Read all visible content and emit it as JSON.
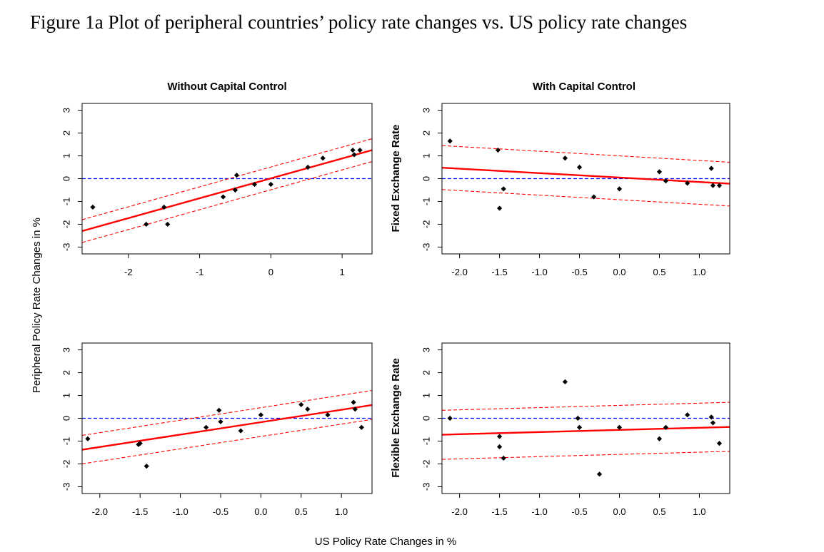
{
  "figure": {
    "caption": "Figure 1a Plot of peripheral countries’ policy rate changes vs. US policy rate changes",
    "column_titles": [
      "Without Capital Control",
      "With Capital Control"
    ],
    "row_labels": [
      "Fixed Exchange Rate",
      "Flexible Exchange Rate"
    ],
    "y_axis_label": "Peripheral Policy Rate Changes in %",
    "x_axis_label": "US Policy Rate Changes in %"
  },
  "colors": {
    "points": "#000000",
    "fit_line": "#ff0000",
    "confidence_band": "#ff0000",
    "zero_line": "#0000ff",
    "frame": "#000000"
  },
  "chart_data": [
    {
      "type": "scatter",
      "title": "Without Capital Control",
      "xlabel": "",
      "ylabel": "",
      "xlim": [
        -2.65,
        1.42
      ],
      "ylim": [
        -3.3,
        3.3
      ],
      "x_ticks": [
        -2,
        -1,
        0,
        1
      ],
      "y_ticks": [
        -3,
        -2,
        -1,
        0,
        1,
        2,
        3
      ],
      "x": [
        -2.5,
        -1.75,
        -1.5,
        -1.45,
        -0.67,
        -0.5,
        -0.48,
        -0.23,
        0.0,
        0.52,
        0.73,
        1.15,
        1.17,
        1.25
      ],
      "y": [
        -1.25,
        -2.0,
        -1.25,
        -2.0,
        -0.8,
        -0.5,
        0.15,
        -0.25,
        -0.25,
        0.5,
        0.9,
        1.25,
        1.05,
        1.25
      ],
      "fit_line": {
        "x": [
          -2.65,
          1.42
        ],
        "y": [
          -2.3,
          1.25
        ]
      },
      "confidence_band": {
        "upper": {
          "x": [
            -2.65,
            1.42
          ],
          "y": [
            -1.8,
            1.75
          ]
        },
        "lower": {
          "x": [
            -2.65,
            1.42
          ],
          "y": [
            -2.8,
            0.75
          ]
        }
      },
      "reference_line_y": 0,
      "grid": false
    },
    {
      "type": "scatter",
      "title": "With Capital Control",
      "xlabel": "",
      "ylabel": "Fixed Exchange Rate",
      "xlim": [
        -2.22,
        1.38
      ],
      "ylim": [
        -3.3,
        3.3
      ],
      "x_ticks": [
        -2.0,
        -1.5,
        -1.0,
        -0.5,
        0.0,
        0.5,
        1.0
      ],
      "y_ticks": [
        -3,
        -2,
        -1,
        0,
        1,
        2,
        3
      ],
      "x": [
        -2.12,
        -1.52,
        -1.5,
        -1.45,
        -0.68,
        -0.5,
        -0.32,
        0.0,
        0.5,
        0.58,
        0.85,
        1.15,
        1.17,
        1.25
      ],
      "y": [
        1.65,
        1.25,
        -1.3,
        -0.45,
        0.9,
        0.5,
        -0.8,
        -0.45,
        0.3,
        -0.1,
        -0.2,
        0.45,
        -0.3,
        -0.3
      ],
      "fit_line": {
        "x": [
          -2.22,
          1.38
        ],
        "y": [
          0.48,
          -0.22
        ]
      },
      "confidence_band": {
        "upper": {
          "x": [
            -2.22,
            1.38
          ],
          "y": [
            1.45,
            0.72
          ]
        },
        "lower": {
          "x": [
            -2.22,
            1.38
          ],
          "y": [
            -0.48,
            -1.2
          ]
        }
      },
      "reference_line_y": 0,
      "grid": false
    },
    {
      "type": "scatter",
      "title": "",
      "xlabel": "",
      "ylabel": "",
      "xlim": [
        -2.22,
        1.38
      ],
      "ylim": [
        -3.3,
        3.3
      ],
      "x_ticks": [
        -2.0,
        -1.5,
        -1.0,
        -0.5,
        0.0,
        0.5,
        1.0
      ],
      "y_ticks": [
        -3,
        -2,
        -1,
        0,
        1,
        2,
        3
      ],
      "x": [
        -2.15,
        -1.52,
        -1.5,
        -1.42,
        -0.68,
        -0.52,
        -0.5,
        -0.25,
        0.0,
        0.5,
        0.58,
        0.83,
        1.15,
        1.17,
        1.25
      ],
      "y": [
        -0.9,
        -1.15,
        -1.1,
        -2.1,
        -0.4,
        0.35,
        -0.15,
        -0.55,
        0.15,
        0.6,
        0.4,
        0.15,
        0.7,
        0.4,
        -0.4
      ],
      "fit_line": {
        "x": [
          -2.22,
          1.38
        ],
        "y": [
          -1.38,
          0.58
        ]
      },
      "confidence_band": {
        "upper": {
          "x": [
            -2.22,
            1.38
          ],
          "y": [
            -0.75,
            1.22
          ]
        },
        "lower": {
          "x": [
            -2.22,
            1.38
          ],
          "y": [
            -2.0,
            -0.05
          ]
        }
      },
      "reference_line_y": 0,
      "grid": false
    },
    {
      "type": "scatter",
      "title": "",
      "xlabel": "",
      "ylabel": "Flexible Exchange Rate",
      "xlim": [
        -2.22,
        1.38
      ],
      "ylim": [
        -3.3,
        3.3
      ],
      "x_ticks": [
        -2.0,
        -1.5,
        -1.0,
        -0.5,
        0.0,
        0.5,
        1.0
      ],
      "y_ticks": [
        -3,
        -2,
        -1,
        0,
        1,
        2,
        3
      ],
      "x": [
        -2.12,
        -1.5,
        -1.5,
        -1.45,
        -0.68,
        -0.52,
        -0.5,
        -0.25,
        0.0,
        0.5,
        0.58,
        0.85,
        1.15,
        1.17,
        1.25
      ],
      "y": [
        0.0,
        -0.8,
        -1.25,
        -1.75,
        1.6,
        0.0,
        -0.4,
        -2.45,
        -0.4,
        -0.9,
        -0.4,
        0.15,
        0.05,
        -0.2,
        -1.1
      ],
      "fit_line": {
        "x": [
          -2.22,
          1.38
        ],
        "y": [
          -0.72,
          -0.38
        ]
      },
      "confidence_band": {
        "upper": {
          "x": [
            -2.22,
            1.38
          ],
          "y": [
            0.35,
            0.7
          ]
        },
        "lower": {
          "x": [
            -2.22,
            1.38
          ],
          "y": [
            -1.8,
            -1.45
          ]
        }
      },
      "reference_line_y": 0,
      "grid": false
    }
  ]
}
